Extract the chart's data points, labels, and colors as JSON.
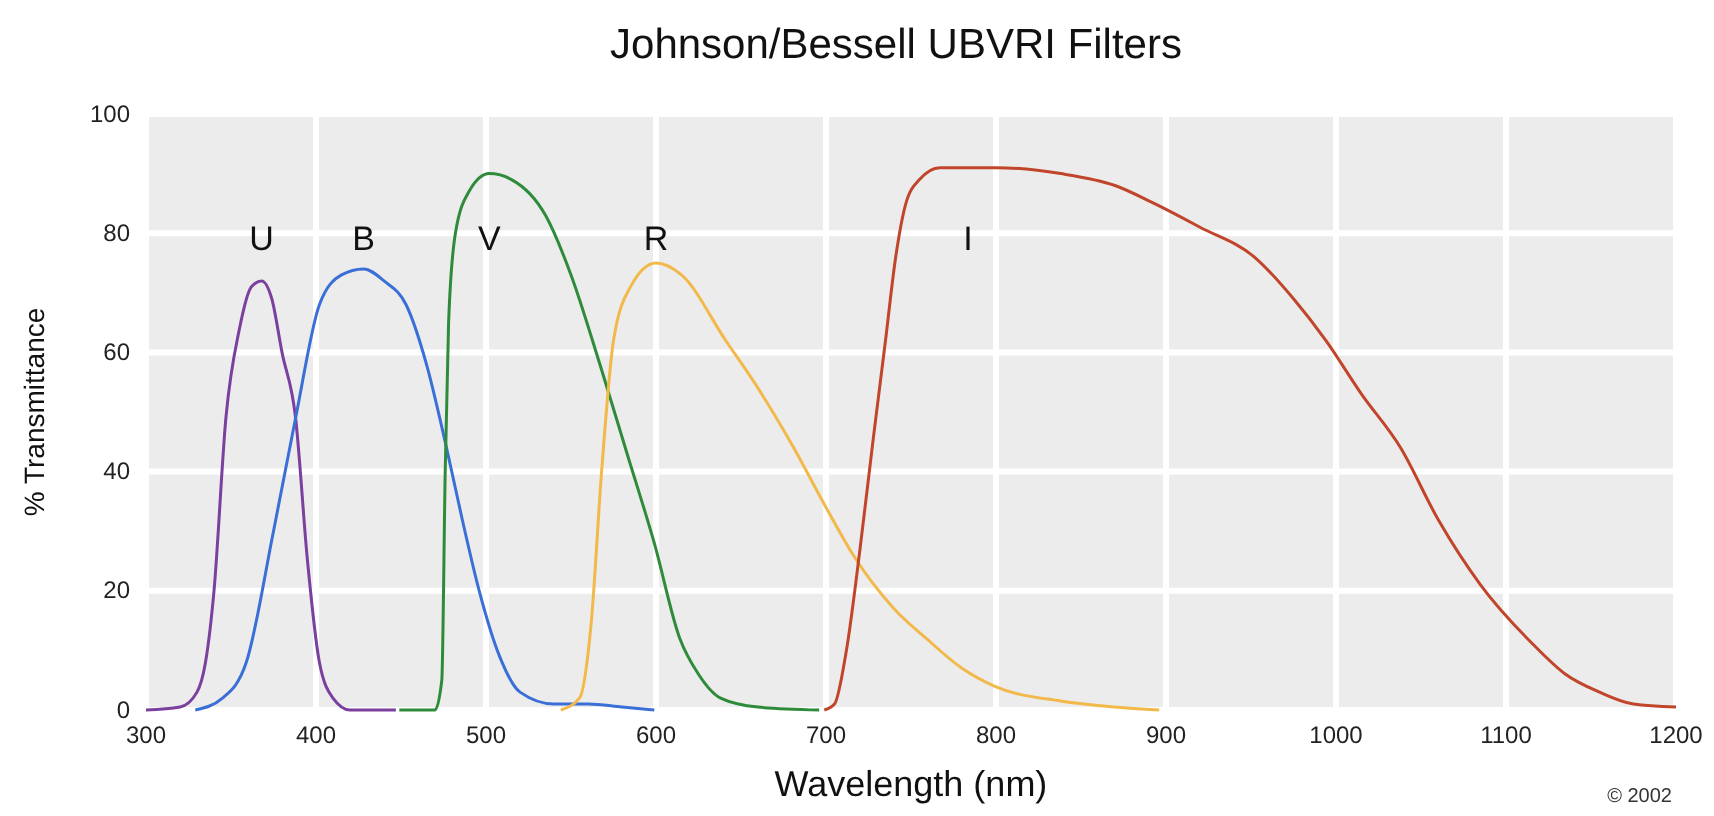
{
  "chart_data": {
    "type": "line",
    "title": "Johnson/Bessell UBVRI Filters",
    "xlabel": "Wavelength (nm)",
    "ylabel": "% Transmittance",
    "xlim": [
      300,
      1200
    ],
    "xticks": [
      300,
      400,
      500,
      600,
      700,
      800,
      900,
      1000,
      1100,
      1200
    ],
    "ylim": [
      0,
      100
    ],
    "yticks": [
      0,
      20,
      40,
      60,
      80,
      100
    ],
    "grid": true,
    "annotations": [
      "© 2002"
    ],
    "series": [
      {
        "name": "U",
        "color": "#7b3f9e",
        "x": [
          300,
          320,
          330,
          335,
          340,
          347,
          355,
          362,
          368,
          374,
          380,
          388,
          395,
          402,
          410,
          420,
          447
        ],
        "values": [
          0,
          0.5,
          3,
          8,
          20,
          49,
          64,
          71,
          72,
          69,
          60,
          49,
          25,
          8,
          2,
          0,
          0
        ]
      },
      {
        "name": "B",
        "color": "#3a6fd8",
        "x": [
          329,
          345,
          359,
          375,
          388,
          402,
          415,
          428,
          440,
          453,
          465,
          476,
          486,
          496,
          508,
          520,
          540,
          560,
          580,
          599
        ],
        "values": [
          0,
          2,
          8,
          30,
          49,
          68,
          73,
          74,
          72,
          68,
          58,
          45,
          32,
          20,
          9,
          3,
          1,
          1,
          0.5,
          0
        ]
      },
      {
        "name": "V",
        "color": "#2e8b3a",
        "x": [
          449,
          470,
          474,
          476,
          478,
          482,
          490,
          502,
          515,
          535,
          550,
          567,
          583,
          599,
          614,
          625,
          638,
          660,
          696
        ],
        "values": [
          0,
          0,
          5,
          40,
          65,
          80,
          87,
          90,
          89,
          83,
          73,
          58,
          43,
          28,
          12,
          6,
          2,
          0.5,
          0
        ]
      },
      {
        "name": "R",
        "color": "#f2b94a",
        "x": [
          544,
          555,
          562,
          568,
          575,
          585,
          600,
          615,
          641,
          660,
          681,
          700,
          716,
          740,
          759,
          780,
          799,
          838,
          870,
          896
        ],
        "values": [
          0,
          2,
          15,
          40,
          62,
          71,
          75,
          73,
          62,
          54,
          44,
          34,
          26,
          17,
          12,
          7,
          4,
          1.5,
          0.5,
          0
        ]
      },
      {
        "name": "I",
        "color": "#c0452a",
        "x": [
          699,
          705,
          712,
          720,
          728,
          735,
          741,
          747,
          755,
          767,
          800,
          838,
          870,
          893,
          920,
          952,
          975,
          994,
          1015,
          1038,
          1060,
          1085,
          1116,
          1135,
          1155,
          1175,
          1200
        ],
        "values": [
          0,
          1,
          10,
          27,
          46,
          62,
          76,
          85,
          89,
          91,
          91,
          90,
          88,
          85,
          81,
          76,
          69,
          62,
          53,
          44,
          32,
          21,
          11,
          6,
          3,
          1,
          0.5
        ]
      }
    ]
  }
}
